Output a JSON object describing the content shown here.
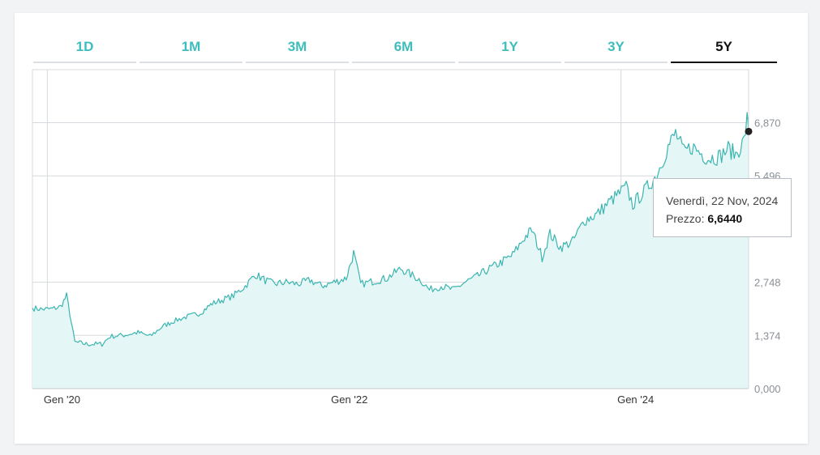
{
  "tabs": [
    {
      "label": "1D",
      "active": false
    },
    {
      "label": "1M",
      "active": false
    },
    {
      "label": "3M",
      "active": false
    },
    {
      "label": "6M",
      "active": false
    },
    {
      "label": "1Y",
      "active": false
    },
    {
      "label": "3Y",
      "active": false
    },
    {
      "label": "5Y",
      "active": true
    }
  ],
  "tooltip": {
    "date": "Venerdì, 22 Nov, 2024",
    "price_label": "Prezzo:",
    "price_value": "6,6440"
  },
  "colors": {
    "accent": "#3fbdbd",
    "line": "#3ab5b0",
    "fill": "#e4f7f6",
    "grid": "#d6d9dd"
  },
  "chart_data": {
    "type": "area",
    "title": "",
    "xlabel": "",
    "ylabel": "",
    "y_ticks": [
      "0,000",
      "1,374",
      "2,748",
      "5,496",
      "6,870"
    ],
    "x_ticks": [
      {
        "date": "2020-01-02",
        "label": "Gen '20"
      },
      {
        "date": "2022-01-03",
        "label": "Gen '22"
      },
      {
        "date": "2024-01-02",
        "label": "Gen '24"
      }
    ],
    "xlim": [
      "2019-11-25",
      "2024-11-22"
    ],
    "ylim": [
      0,
      8.24
    ],
    "grid": true,
    "series": [
      {
        "values": [
          [
            "2019-11-25",
            2.08
          ],
          [
            "2019-12-20",
            2.05
          ],
          [
            "2020-01-15",
            2.06
          ],
          [
            "2020-02-05",
            2.12
          ],
          [
            "2020-02-20",
            2.4
          ],
          [
            "2020-03-12",
            1.2
          ],
          [
            "2020-04-10",
            1.15
          ],
          [
            "2020-05-20",
            1.15
          ],
          [
            "2020-06-10",
            1.35
          ],
          [
            "2020-07-15",
            1.38
          ],
          [
            "2020-08-20",
            1.45
          ],
          [
            "2020-09-20",
            1.35
          ],
          [
            "2020-10-20",
            1.6
          ],
          [
            "2020-11-20",
            1.75
          ],
          [
            "2020-12-20",
            1.85
          ],
          [
            "2021-01-25",
            1.95
          ],
          [
            "2021-02-25",
            2.2
          ],
          [
            "2021-03-25",
            2.3
          ],
          [
            "2021-04-20",
            2.4
          ],
          [
            "2021-05-20",
            2.65
          ],
          [
            "2021-06-15",
            2.95
          ],
          [
            "2021-07-10",
            2.8
          ],
          [
            "2021-08-01",
            2.7
          ],
          [
            "2021-09-01",
            2.75
          ],
          [
            "2021-10-01",
            2.7
          ],
          [
            "2021-11-01",
            2.8
          ],
          [
            "2021-12-01",
            2.65
          ],
          [
            "2022-01-01",
            2.75
          ],
          [
            "2022-02-01",
            2.85
          ],
          [
            "2022-02-20",
            3.5
          ],
          [
            "2022-03-10",
            2.7
          ],
          [
            "2022-04-01",
            2.75
          ],
          [
            "2022-05-15",
            2.85
          ],
          [
            "2022-06-20",
            3.1
          ],
          [
            "2022-07-15",
            2.95
          ],
          [
            "2022-08-10",
            2.8
          ],
          [
            "2022-09-01",
            2.55
          ],
          [
            "2022-10-01",
            2.65
          ],
          [
            "2022-11-01",
            2.55
          ],
          [
            "2022-12-01",
            2.75
          ],
          [
            "2023-01-01",
            2.9
          ],
          [
            "2023-02-01",
            3.1
          ],
          [
            "2023-03-01",
            3.25
          ],
          [
            "2023-04-01",
            3.45
          ],
          [
            "2023-05-01",
            3.9
          ],
          [
            "2023-05-20",
            4.1
          ],
          [
            "2023-06-15",
            3.4
          ],
          [
            "2023-07-05",
            4.0
          ],
          [
            "2023-08-01",
            3.65
          ],
          [
            "2023-09-01",
            3.8
          ],
          [
            "2023-10-01",
            4.35
          ],
          [
            "2023-11-01",
            4.5
          ],
          [
            "2023-12-01",
            4.8
          ],
          [
            "2024-01-15",
            5.2
          ],
          [
            "2024-02-01",
            4.75
          ],
          [
            "2024-03-01",
            5.1
          ],
          [
            "2024-04-01",
            5.5
          ],
          [
            "2024-05-01",
            6.25
          ],
          [
            "2024-05-20",
            6.6
          ],
          [
            "2024-06-10",
            6.1
          ],
          [
            "2024-07-01",
            6.25
          ],
          [
            "2024-08-10",
            5.95
          ],
          [
            "2024-09-10",
            6.0
          ],
          [
            "2024-10-01",
            6.2
          ],
          [
            "2024-10-20",
            6.05
          ],
          [
            "2024-11-10",
            6.4
          ],
          [
            "2024-11-18",
            6.95
          ],
          [
            "2024-11-22",
            6.644
          ]
        ]
      }
    ]
  }
}
